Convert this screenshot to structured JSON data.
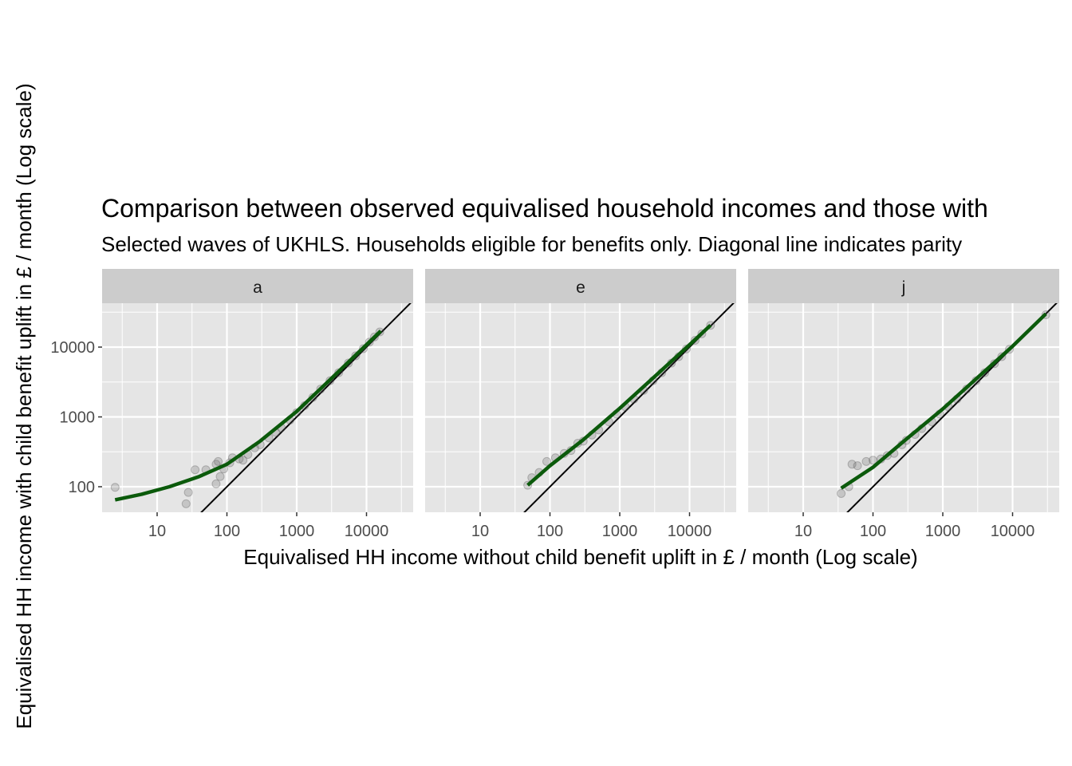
{
  "chart_data": {
    "type": "scatter",
    "title": "Comparison between observed equivalised household incomes and those with",
    "subtitle": "Selected waves of UKHLS. Households eligible for benefits only. Diagonal line indicates parity",
    "xlabel": "Equivalised HH income without child benefit uplift in £ / month (Log scale)",
    "ylabel": "Equivalised HH income with child benefit uplift in £ / month (Log scale)",
    "x_scale": "log10",
    "y_scale": "log10",
    "xlim": [
      1.5,
      50000
    ],
    "ylim": [
      40,
      60000
    ],
    "x_ticks": [
      10,
      100,
      1000,
      10000
    ],
    "x_tick_labels": [
      "10",
      "100",
      "1000",
      "10000"
    ],
    "y_ticks": [
      100,
      1000,
      10000
    ],
    "y_tick_labels": [
      "100",
      "1000",
      "10000"
    ],
    "grid": true,
    "reference_line": "y = x",
    "colors": {
      "panel_bg": "#e5e5e5",
      "strip_bg": "#cccccc",
      "points": "#555555",
      "smooth": "#0b5a0b",
      "diagonal": "#000000",
      "grid": "#ffffff"
    },
    "panels": [
      {
        "label": "a",
        "smooth": [
          [
            2.5,
            65
          ],
          [
            6,
            78
          ],
          [
            15,
            100
          ],
          [
            40,
            140
          ],
          [
            100,
            210
          ],
          [
            300,
            450
          ],
          [
            1000,
            1200
          ],
          [
            3000,
            3400
          ],
          [
            16000,
            17000
          ]
        ],
        "points": [
          [
            2.5,
            98
          ],
          [
            28,
            83
          ],
          [
            26,
            57
          ],
          [
            35,
            175
          ],
          [
            50,
            175
          ],
          [
            70,
            210
          ],
          [
            75,
            230
          ],
          [
            70,
            110
          ],
          [
            80,
            140
          ],
          [
            90,
            180
          ],
          [
            110,
            220
          ],
          [
            120,
            260
          ],
          [
            150,
            250
          ],
          [
            170,
            240
          ],
          [
            200,
            290
          ],
          [
            250,
            360
          ],
          [
            300,
            400
          ],
          [
            400,
            500
          ],
          [
            500,
            600
          ],
          [
            600,
            700
          ],
          [
            800,
            900
          ],
          [
            1000,
            1150
          ],
          [
            1300,
            1450
          ],
          [
            1700,
            1900
          ],
          [
            2200,
            2500
          ],
          [
            3000,
            3300
          ],
          [
            4000,
            4300
          ],
          [
            5500,
            5900
          ],
          [
            7000,
            7500
          ],
          [
            9000,
            9500
          ],
          [
            11000,
            11800
          ],
          [
            13000,
            14000
          ],
          [
            15500,
            16500
          ]
        ]
      },
      {
        "label": "e",
        "smooth": [
          [
            48,
            105
          ],
          [
            100,
            200
          ],
          [
            300,
            470
          ],
          [
            1000,
            1330
          ],
          [
            3000,
            3600
          ],
          [
            10000,
            10800
          ],
          [
            20000,
            20500
          ]
        ],
        "points": [
          [
            48,
            105
          ],
          [
            55,
            135
          ],
          [
            70,
            160
          ],
          [
            90,
            230
          ],
          [
            120,
            260
          ],
          [
            160,
            300
          ],
          [
            200,
            330
          ],
          [
            250,
            420
          ],
          [
            300,
            450
          ],
          [
            400,
            550
          ],
          [
            500,
            650
          ],
          [
            700,
            850
          ],
          [
            900,
            1100
          ],
          [
            1200,
            1400
          ],
          [
            1600,
            1800
          ],
          [
            2200,
            2400
          ],
          [
            3000,
            3300
          ],
          [
            4000,
            4300
          ],
          [
            5500,
            5900
          ],
          [
            7000,
            7300
          ],
          [
            9000,
            9400
          ],
          [
            12000,
            12500
          ],
          [
            15000,
            15500
          ],
          [
            20000,
            20500
          ]
        ]
      },
      {
        "label": "j",
        "smooth": [
          [
            35,
            95
          ],
          [
            100,
            190
          ],
          [
            300,
            480
          ],
          [
            1000,
            1300
          ],
          [
            3000,
            3500
          ],
          [
            10000,
            10300
          ],
          [
            30000,
            30000
          ]
        ],
        "points": [
          [
            35,
            80
          ],
          [
            45,
            100
          ],
          [
            50,
            210
          ],
          [
            60,
            200
          ],
          [
            80,
            230
          ],
          [
            100,
            240
          ],
          [
            130,
            250
          ],
          [
            160,
            280
          ],
          [
            200,
            300
          ],
          [
            260,
            400
          ],
          [
            300,
            460
          ],
          [
            400,
            560
          ],
          [
            500,
            680
          ],
          [
            700,
            850
          ],
          [
            900,
            1100
          ],
          [
            1200,
            1400
          ],
          [
            1600,
            1800
          ],
          [
            2200,
            2500
          ],
          [
            3000,
            3300
          ],
          [
            4000,
            4300
          ],
          [
            5500,
            5800
          ],
          [
            7000,
            7300
          ],
          [
            9000,
            9300
          ],
          [
            30000,
            29000
          ]
        ]
      }
    ]
  }
}
